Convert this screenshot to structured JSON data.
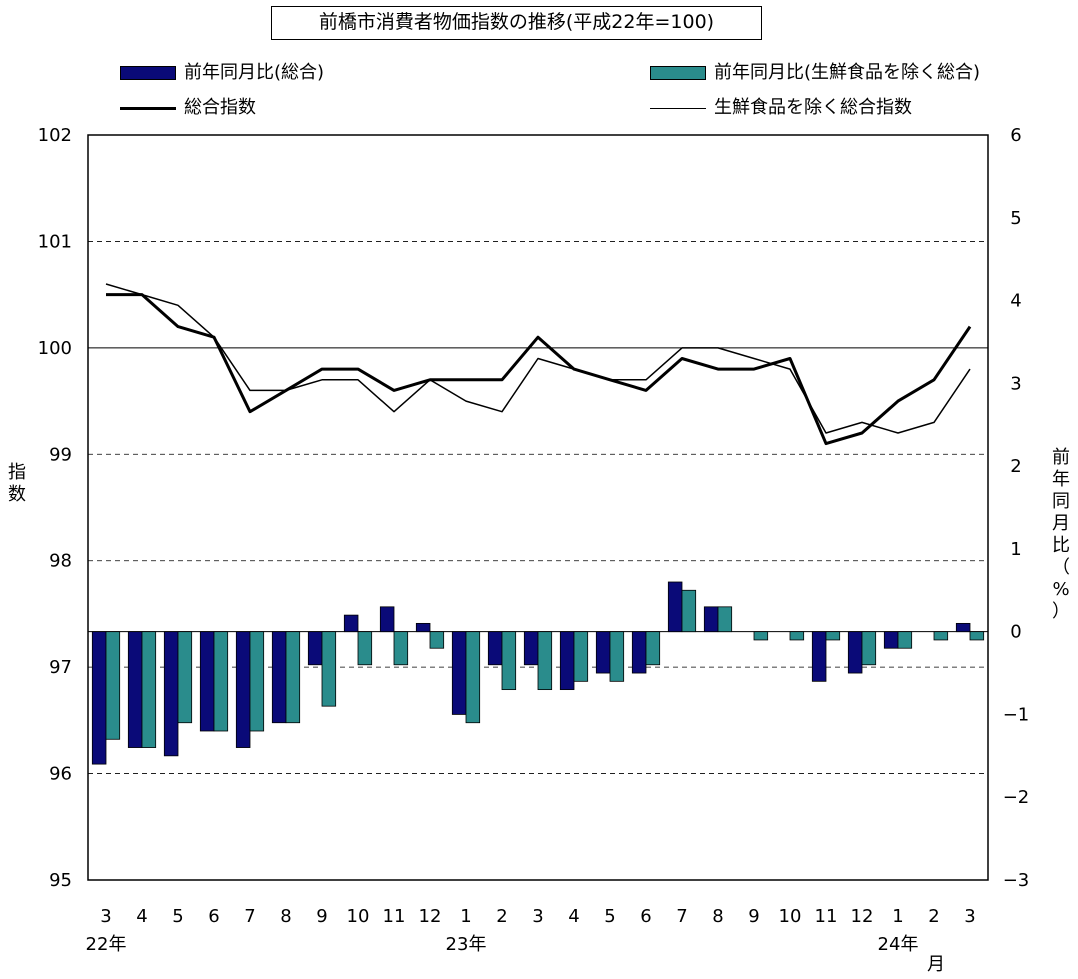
{
  "chart_data": {
    "type": "bar+line",
    "title": "前橋市消費者物価指数の推移(平成22年=100)",
    "categories": [
      "3",
      "4",
      "5",
      "6",
      "7",
      "8",
      "9",
      "10",
      "11",
      "12",
      "1",
      "2",
      "3",
      "4",
      "5",
      "6",
      "7",
      "8",
      "9",
      "10",
      "11",
      "12",
      "1",
      "2",
      "3"
    ],
    "year_labels": [
      {
        "index": 0,
        "label": "22年"
      },
      {
        "index": 10,
        "label": "23年"
      },
      {
        "index": 22,
        "label": "24年"
      }
    ],
    "month_unit_label": "月",
    "left_axis": {
      "label_chars": [
        "指",
        "数"
      ],
      "range": [
        95,
        102
      ],
      "ticks": [
        95,
        96,
        97,
        98,
        99,
        100,
        101,
        102
      ]
    },
    "right_axis": {
      "label_chars": [
        "前",
        "年",
        "同",
        "月",
        "比",
        "（",
        "%",
        "）"
      ],
      "range": [
        -3,
        6
      ],
      "ticks": [
        -3,
        -2,
        -1,
        0,
        1,
        2,
        3,
        4,
        5,
        6
      ]
    },
    "bar_series": [
      {
        "name": "前年同月比(総合)",
        "color": "#0a0a78",
        "values": [
          -1.6,
          -1.4,
          -1.5,
          -1.2,
          -1.4,
          -1.1,
          -0.4,
          0.2,
          0.3,
          0.1,
          -1.0,
          -0.4,
          -0.4,
          -0.7,
          -0.5,
          -0.5,
          0.6,
          0.3,
          0.0,
          0.0,
          -0.6,
          -0.5,
          -0.2,
          0.0,
          0.1
        ]
      },
      {
        "name": "前年同月比(生鮮食品を除く総合)",
        "color": "#2a8c8c",
        "values": [
          -1.3,
          -1.4,
          -1.1,
          -1.2,
          -1.2,
          -1.1,
          -0.9,
          -0.4,
          -0.4,
          -0.2,
          -1.1,
          -0.7,
          -0.7,
          -0.6,
          -0.6,
          -0.4,
          0.5,
          0.3,
          -0.1,
          -0.1,
          -0.1,
          -0.4,
          -0.2,
          -0.1,
          -0.1
        ]
      }
    ],
    "line_series": [
      {
        "name": "総合指数",
        "color": "#000000",
        "weight": "thick",
        "values": [
          100.5,
          100.5,
          100.2,
          100.1,
          99.4,
          99.6,
          99.8,
          99.8,
          99.6,
          99.7,
          99.7,
          99.7,
          100.1,
          99.8,
          99.7,
          99.6,
          99.9,
          99.8,
          99.8,
          99.9,
          99.1,
          99.2,
          99.5,
          99.7,
          100.2
        ]
      },
      {
        "name": "生鮮食品を除く総合指数",
        "color": "#000000",
        "weight": "thin",
        "values": [
          100.6,
          100.5,
          100.4,
          100.1,
          99.6,
          99.6,
          99.7,
          99.7,
          99.4,
          99.7,
          99.5,
          99.4,
          99.9,
          99.8,
          99.7,
          99.7,
          100.0,
          100.0,
          99.9,
          99.8,
          99.2,
          99.3,
          99.2,
          99.3,
          99.8
        ]
      }
    ],
    "gridlines": "dashed",
    "reference_line": 100
  }
}
